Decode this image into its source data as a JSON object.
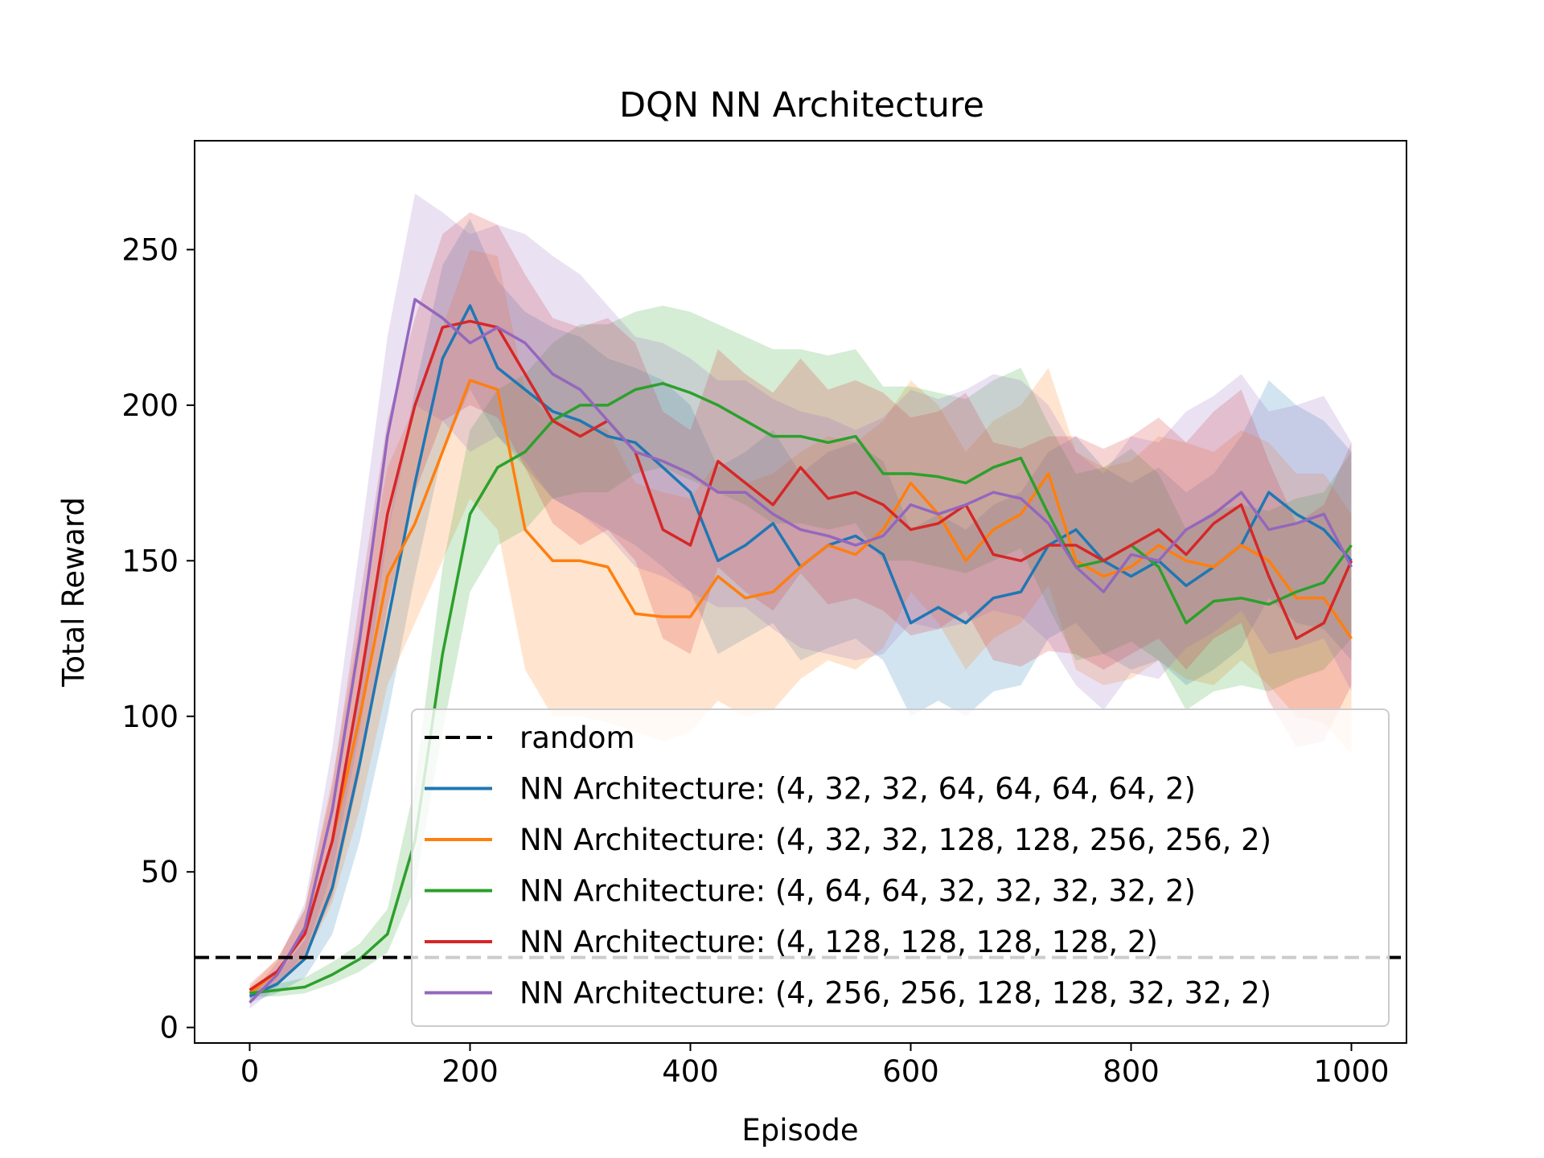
{
  "chart_data": {
    "type": "line",
    "title": "DQN NN Architecture",
    "xlabel": "Episode",
    "ylabel": "Total Reward",
    "xlim": [
      -50,
      1050
    ],
    "ylim": [
      -5,
      285
    ],
    "xticks": [
      0,
      200,
      400,
      600,
      800,
      1000
    ],
    "yticks": [
      0,
      50,
      100,
      150,
      200,
      250
    ],
    "grid": false,
    "legend_position": "lower-right",
    "baseline": {
      "name": "random",
      "value": 22.5,
      "color": "#000000",
      "style": "dashed"
    },
    "series": [
      {
        "name": "NN Architecture: (4, 32, 32, 64, 64, 64, 64, 2)",
        "color": "#1f77b4",
        "x": [
          0,
          25,
          50,
          75,
          100,
          125,
          150,
          175,
          200,
          225,
          250,
          275,
          300,
          325,
          350,
          375,
          400,
          425,
          450,
          475,
          500,
          525,
          550,
          575,
          600,
          625,
          650,
          675,
          700,
          725,
          750,
          775,
          800,
          825,
          850,
          875,
          900,
          925,
          950,
          975,
          1000
        ],
        "y": [
          10,
          14,
          22,
          45,
          85,
          130,
          175,
          215,
          232,
          212,
          205,
          198,
          195,
          190,
          188,
          180,
          172,
          150,
          155,
          162,
          148,
          155,
          158,
          152,
          130,
          135,
          130,
          138,
          140,
          155,
          160,
          150,
          145,
          150,
          142,
          148,
          155,
          172,
          165,
          160,
          150
        ],
        "lower": [
          8,
          11,
          16,
          30,
          60,
          100,
          145,
          185,
          205,
          190,
          180,
          170,
          165,
          160,
          155,
          148,
          140,
          120,
          125,
          130,
          118,
          122,
          125,
          118,
          100,
          105,
          100,
          108,
          110,
          125,
          130,
          120,
          115,
          118,
          110,
          115,
          122,
          138,
          130,
          128,
          118
        ],
        "upper": [
          12,
          17,
          28,
          60,
          110,
          160,
          205,
          245,
          260,
          240,
          230,
          225,
          222,
          215,
          212,
          208,
          200,
          180,
          185,
          192,
          178,
          185,
          188,
          182,
          160,
          165,
          160,
          168,
          172,
          185,
          190,
          180,
          175,
          180,
          172,
          178,
          190,
          208,
          200,
          195,
          185
        ]
      },
      {
        "name": "NN Architecture: (4, 32, 32, 128, 128, 256, 256, 2)",
        "color": "#ff7f0e",
        "x": [
          0,
          25,
          50,
          75,
          100,
          125,
          150,
          175,
          200,
          225,
          250,
          275,
          300,
          325,
          350,
          375,
          400,
          425,
          450,
          475,
          500,
          525,
          550,
          575,
          600,
          625,
          650,
          675,
          700,
          725,
          750,
          775,
          800,
          825,
          850,
          875,
          900,
          925,
          950,
          975,
          1000
        ],
        "y": [
          11,
          18,
          30,
          60,
          100,
          145,
          162,
          185,
          208,
          205,
          160,
          150,
          150,
          148,
          133,
          132,
          132,
          145,
          138,
          140,
          148,
          155,
          152,
          160,
          175,
          165,
          150,
          160,
          165,
          178,
          150,
          145,
          148,
          155,
          150,
          148,
          155,
          150,
          138,
          138,
          125
        ],
        "lower": [
          9,
          14,
          22,
          40,
          70,
          110,
          130,
          150,
          170,
          160,
          115,
          100,
          100,
          98,
          95,
          92,
          95,
          105,
          100,
          102,
          112,
          118,
          115,
          122,
          140,
          130,
          115,
          125,
          130,
          142,
          115,
          110,
          112,
          118,
          112,
          110,
          118,
          110,
          100,
          98,
          88
        ],
        "upper": [
          13,
          22,
          38,
          80,
          130,
          180,
          200,
          225,
          250,
          248,
          205,
          195,
          195,
          192,
          175,
          172,
          170,
          182,
          175,
          178,
          185,
          190,
          188,
          195,
          208,
          200,
          185,
          195,
          200,
          212,
          185,
          180,
          182,
          190,
          188,
          185,
          192,
          188,
          178,
          178,
          165
        ]
      },
      {
        "name": "NN Architecture: (4, 64, 64, 32, 32, 32, 32, 2)",
        "color": "#2ca02c",
        "x": [
          0,
          25,
          50,
          75,
          100,
          125,
          150,
          175,
          200,
          225,
          250,
          275,
          300,
          325,
          350,
          375,
          400,
          425,
          450,
          475,
          500,
          525,
          550,
          575,
          600,
          625,
          650,
          675,
          700,
          725,
          750,
          775,
          800,
          825,
          850,
          875,
          900,
          925,
          950,
          975,
          1000
        ],
        "y": [
          11,
          12,
          13,
          17,
          22,
          30,
          60,
          120,
          165,
          180,
          185,
          195,
          200,
          200,
          205,
          207,
          204,
          200,
          195,
          190,
          190,
          188,
          190,
          178,
          178,
          177,
          175,
          180,
          183,
          165,
          148,
          150,
          155,
          148,
          130,
          137,
          138,
          136,
          140,
          143,
          155
        ],
        "lower": [
          10,
          10,
          11,
          14,
          18,
          24,
          45,
          95,
          140,
          155,
          160,
          170,
          172,
          172,
          178,
          180,
          176,
          172,
          168,
          162,
          162,
          160,
          162,
          150,
          150,
          148,
          146,
          150,
          154,
          135,
          118,
          120,
          124,
          118,
          102,
          108,
          110,
          108,
          112,
          115,
          125
        ],
        "upper": [
          12,
          14,
          16,
          21,
          27,
          38,
          78,
          148,
          192,
          205,
          210,
          220,
          226,
          226,
          230,
          232,
          230,
          226,
          222,
          218,
          218,
          216,
          218,
          206,
          206,
          204,
          202,
          208,
          212,
          194,
          178,
          180,
          186,
          178,
          160,
          166,
          168,
          166,
          170,
          172,
          185
        ]
      },
      {
        "name": "NN Architecture: (4, 128, 128, 128, 128, 2)",
        "color": "#d62728",
        "x": [
          0,
          25,
          50,
          75,
          100,
          125,
          150,
          175,
          200,
          225,
          250,
          275,
          300,
          325,
          350,
          375,
          400,
          425,
          450,
          475,
          500,
          525,
          550,
          575,
          600,
          625,
          650,
          675,
          700,
          725,
          750,
          775,
          800,
          825,
          850,
          875,
          900,
          925,
          950,
          975,
          1000
        ],
        "y": [
          12,
          18,
          30,
          60,
          110,
          165,
          200,
          225,
          227,
          225,
          210,
          195,
          190,
          195,
          185,
          160,
          155,
          182,
          175,
          168,
          180,
          170,
          172,
          168,
          160,
          162,
          168,
          152,
          150,
          155,
          155,
          150,
          155,
          160,
          152,
          162,
          168,
          145,
          125,
          130,
          150
        ],
        "lower": [
          10,
          14,
          22,
          42,
          82,
          135,
          172,
          195,
          200,
          196,
          180,
          162,
          155,
          160,
          150,
          125,
          120,
          148,
          140,
          134,
          146,
          136,
          138,
          134,
          126,
          128,
          134,
          118,
          116,
          121,
          120,
          115,
          120,
          125,
          115,
          125,
          130,
          105,
          90,
          92,
          110
        ],
        "upper": [
          14,
          22,
          38,
          78,
          138,
          195,
          228,
          255,
          262,
          258,
          242,
          228,
          225,
          228,
          220,
          198,
          192,
          218,
          210,
          204,
          215,
          205,
          208,
          204,
          196,
          198,
          204,
          188,
          186,
          190,
          190,
          186,
          190,
          196,
          188,
          198,
          205,
          182,
          162,
          168,
          188
        ]
      },
      {
        "name": "NN Architecture: (4, 256, 256, 128, 128, 32, 32, 2)",
        "color": "#9467bd",
        "x": [
          0,
          25,
          50,
          75,
          100,
          125,
          150,
          175,
          200,
          225,
          250,
          275,
          300,
          325,
          350,
          375,
          400,
          425,
          450,
          475,
          500,
          525,
          550,
          575,
          600,
          625,
          650,
          675,
          700,
          725,
          750,
          775,
          800,
          825,
          850,
          875,
          900,
          925,
          950,
          975,
          1000
        ],
        "y": [
          8,
          17,
          32,
          70,
          125,
          190,
          234,
          228,
          220,
          225,
          220,
          210,
          205,
          195,
          185,
          182,
          178,
          172,
          172,
          165,
          160,
          158,
          155,
          158,
          168,
          165,
          168,
          172,
          170,
          162,
          148,
          140,
          152,
          150,
          160,
          165,
          172,
          160,
          162,
          165,
          148
        ],
        "lower": [
          6,
          13,
          24,
          50,
          95,
          158,
          200,
          195,
          185,
          190,
          182,
          170,
          165,
          158,
          148,
          145,
          140,
          135,
          135,
          128,
          122,
          120,
          118,
          120,
          130,
          128,
          130,
          134,
          132,
          124,
          110,
          102,
          114,
          112,
          122,
          127,
          134,
          120,
          122,
          125,
          108
        ],
        "upper": [
          10,
          21,
          40,
          90,
          155,
          222,
          268,
          262,
          255,
          258,
          255,
          248,
          242,
          232,
          222,
          220,
          215,
          208,
          208,
          202,
          198,
          196,
          192,
          196,
          205,
          202,
          205,
          210,
          208,
          200,
          185,
          178,
          190,
          188,
          198,
          203,
          210,
          198,
          200,
          203,
          188
        ]
      }
    ]
  }
}
